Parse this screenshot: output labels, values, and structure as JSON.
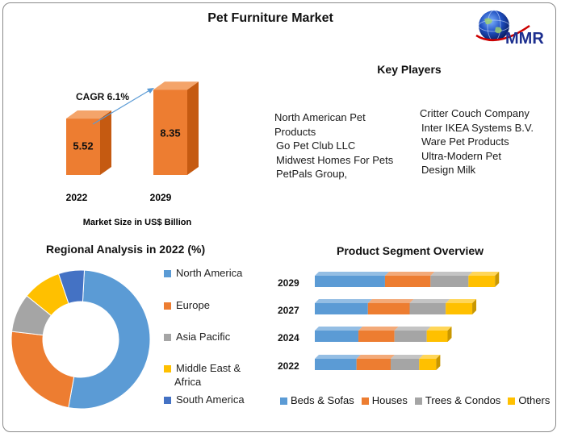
{
  "title": "Pet Furniture Market",
  "logo_text": "MMR",
  "colors": {
    "bar_front": "#ED7D31",
    "bar_top": "#F4A46A",
    "bar_side": "#C55A11",
    "arrow": "#5B9BD5",
    "north_america": "#5B9BD5",
    "europe": "#ED7D31",
    "asia_pacific": "#A5A5A5",
    "middle_east_africa": "#FFC000",
    "south_america": "#4472C4"
  },
  "key_players": {
    "title": "Key Players",
    "col1": [
      "North American Pet",
      "Products",
      "Go Pet Club LLC",
      "Midwest Homes For Pets",
      "PetPals Group,"
    ],
    "col2": [
      "Critter Couch Company",
      "Inter IKEA Systems B.V.",
      "Ware Pet Products",
      "Ultra-Modern Pet",
      "Design Milk"
    ]
  },
  "chart_data": [
    {
      "type": "bar",
      "categories": [
        "2022",
        "2029"
      ],
      "values": [
        5.52,
        8.35
      ],
      "data_labels": [
        "5.52",
        "8.35"
      ],
      "annotation": "CAGR 6.1%",
      "xlabel": "Market Size in US$ Billion"
    },
    {
      "type": "pie",
      "title": "Regional Analysis in 2022 (%)",
      "categories": [
        "North America",
        "Europe",
        "Asia Pacific",
        "Middle East & Africa",
        "South America"
      ],
      "legend_lines": [
        [
          "North America"
        ],
        [
          "Europe"
        ],
        [
          "Asia Pacific"
        ],
        [
          "Middle East &",
          "Africa"
        ],
        [
          "South America"
        ]
      ],
      "values": [
        52,
        24,
        9,
        9,
        6
      ],
      "donut": true,
      "legend": "right"
    },
    {
      "type": "bar",
      "orientation": "horizontal",
      "stacked": true,
      "title": "Product Segment Overview",
      "categories": [
        "2029",
        "2027",
        "2024",
        "2022"
      ],
      "series": [
        {
          "name": "Beds & Sofas",
          "values": [
            37,
            28,
            23,
            22
          ]
        },
        {
          "name": "Houses",
          "values": [
            24,
            22,
            19,
            18
          ]
        },
        {
          "name": "Trees & Condos",
          "values": [
            20,
            19,
            17,
            15
          ]
        },
        {
          "name": "Others",
          "values": [
            14,
            14,
            11,
            9
          ]
        }
      ],
      "legend": "bottom"
    }
  ]
}
